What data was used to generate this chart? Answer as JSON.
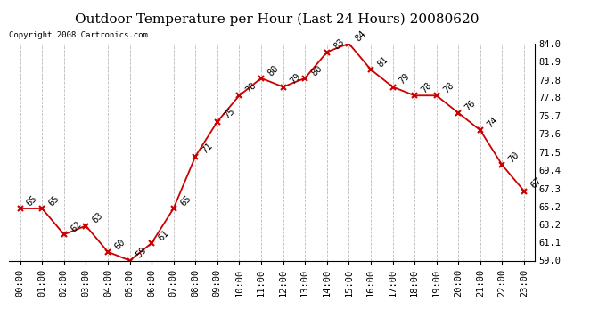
{
  "title": "Outdoor Temperature per Hour (Last 24 Hours) 20080620",
  "copyright_text": "Copyright 2008 Cartronics.com",
  "hours": [
    "00:00",
    "01:00",
    "02:00",
    "03:00",
    "04:00",
    "05:00",
    "06:00",
    "07:00",
    "08:00",
    "09:00",
    "10:00",
    "11:00",
    "12:00",
    "13:00",
    "14:00",
    "15:00",
    "16:00",
    "17:00",
    "18:00",
    "19:00",
    "20:00",
    "21:00",
    "22:00",
    "23:00"
  ],
  "temps": [
    65,
    65,
    62,
    63,
    60,
    59,
    61,
    65,
    71,
    75,
    78,
    80,
    79,
    80,
    83,
    84,
    81,
    79,
    78,
    78,
    76,
    74,
    70,
    67
  ],
  "line_color": "#cc0000",
  "marker": "x",
  "marker_color": "#cc0000",
  "bg_color": "#ffffff",
  "grid_color": "#bbbbbb",
  "ylim": [
    59.0,
    84.0
  ],
  "yticks_right": [
    59.0,
    61.1,
    63.2,
    65.2,
    67.3,
    69.4,
    71.5,
    73.6,
    75.7,
    77.8,
    79.8,
    81.9,
    84.0
  ],
  "label_fontsize": 7.5,
  "title_fontsize": 11,
  "annotation_fontsize": 7.5,
  "copyright_fontsize": 6.5
}
